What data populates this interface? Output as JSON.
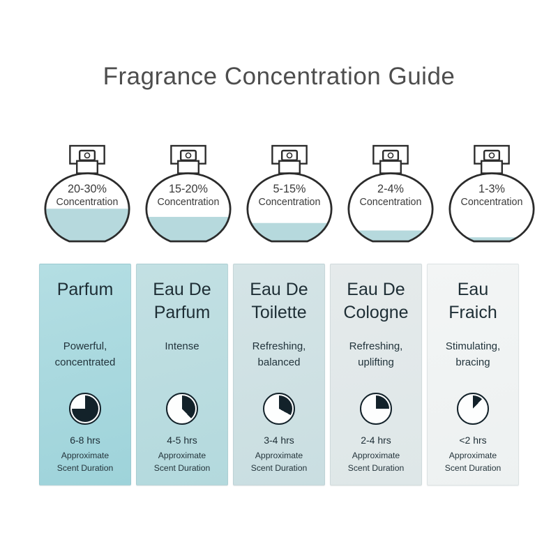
{
  "title": "Fragrance Concentration Guide",
  "colors": {
    "liquid": "#b6d9dd",
    "outline": "#2b2b2b",
    "clock": "#13222a",
    "title_text": "#4d4d4d",
    "column_text": "#1e2e35"
  },
  "bottles": [
    {
      "range": "20-30%",
      "caption": "Concentration",
      "fill_pct": 48
    },
    {
      "range": "15-20%",
      "caption": "Concentration",
      "fill_pct": 36
    },
    {
      "range": "5-15%",
      "caption": "Concentration",
      "fill_pct": 27
    },
    {
      "range": "2-4%",
      "caption": "Concentration",
      "fill_pct": 16
    },
    {
      "range": "1-3%",
      "caption": "Concentration",
      "fill_pct": 6
    }
  ],
  "columns": [
    {
      "name": "Parfum",
      "description": "Powerful,\nconcentrated",
      "clock_pct": 75,
      "duration": "6-8 hrs",
      "note": "Approximate\nScent Duration",
      "bg": [
        "#b4dee3",
        "#9ed3da"
      ]
    },
    {
      "name": "Eau De\nParfum",
      "description": "Intense",
      "clock_pct": 38,
      "duration": "4-5 hrs",
      "note": "Approximate\nScent Duration",
      "bg": [
        "#c3e0e3",
        "#b3d9dd"
      ]
    },
    {
      "name": "Eau De\nToilette",
      "description": "Refreshing,\nbalanced",
      "clock_pct": 33,
      "duration": "3-4 hrs",
      "note": "Approximate\nScent Duration",
      "bg": [
        "#d5e4e6",
        "#c9dee1"
      ]
    },
    {
      "name": "Eau De\nCologne",
      "description": "Refreshing,\nuplifting",
      "clock_pct": 25,
      "duration": "2-4 hrs",
      "note": "Approximate\nScent Duration",
      "bg": [
        "#e5eaeb",
        "#dee7e8"
      ]
    },
    {
      "name": "Eau\nFraich",
      "description": "Stimulating,\nbracing",
      "clock_pct": 12,
      "duration": "<2 hrs",
      "note": "Approximate\nScent Duration",
      "bg": [
        "#f3f5f5",
        "#edf1f1"
      ]
    }
  ]
}
